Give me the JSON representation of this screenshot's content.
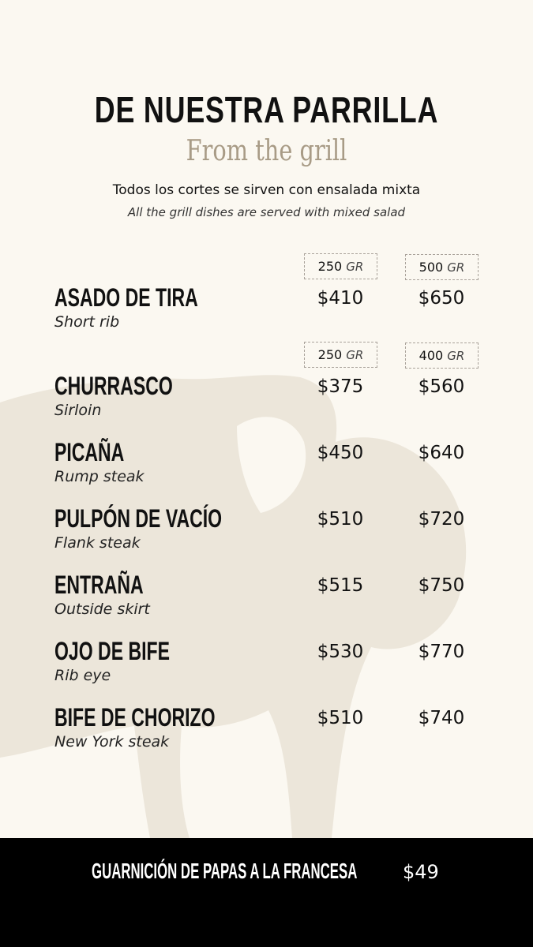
{
  "header": {
    "title": "De nuestra parrilla",
    "subtitle": "From the grill",
    "note_es": "Todos los cortes se sirven con ensalada mixta",
    "note_en": "All the grill dishes are served with mixed salad"
  },
  "size_headers": [
    {
      "a": "250",
      "b": "500",
      "unit": "GR"
    },
    {
      "a": "250",
      "b": "400",
      "unit": "GR"
    }
  ],
  "items": [
    {
      "name": "Asado de tira",
      "en": "Short rib",
      "p1": "$410",
      "p2": "$650"
    },
    {
      "name": "Churrasco",
      "en": "Sirloin",
      "p1": "$375",
      "p2": "$560"
    },
    {
      "name": "Picaña",
      "en": "Rump steak",
      "p1": "$450",
      "p2": "$640"
    },
    {
      "name": "Pulpón de vacío",
      "en": "Flank steak",
      "p1": "$510",
      "p2": "$720"
    },
    {
      "name": "Entraña",
      "en": "Outside skirt",
      "p1": "$515",
      "p2": "$750"
    },
    {
      "name": "Ojo de bife",
      "en": "Rib eye",
      "p1": "$530",
      "p2": "$770"
    },
    {
      "name": "Bife de chorizo",
      "en": "New York steak",
      "p1": "$510",
      "p2": "$740"
    }
  ],
  "footer": {
    "side": "Guarnición de papas a la francesa",
    "price": "$49"
  },
  "colors": {
    "background": "#fbf8f1",
    "silhouette": "#ece6da",
    "subtitle": "#a89b86",
    "footer": "#000000"
  },
  "icons": {
    "background": "cow-silhouette"
  }
}
